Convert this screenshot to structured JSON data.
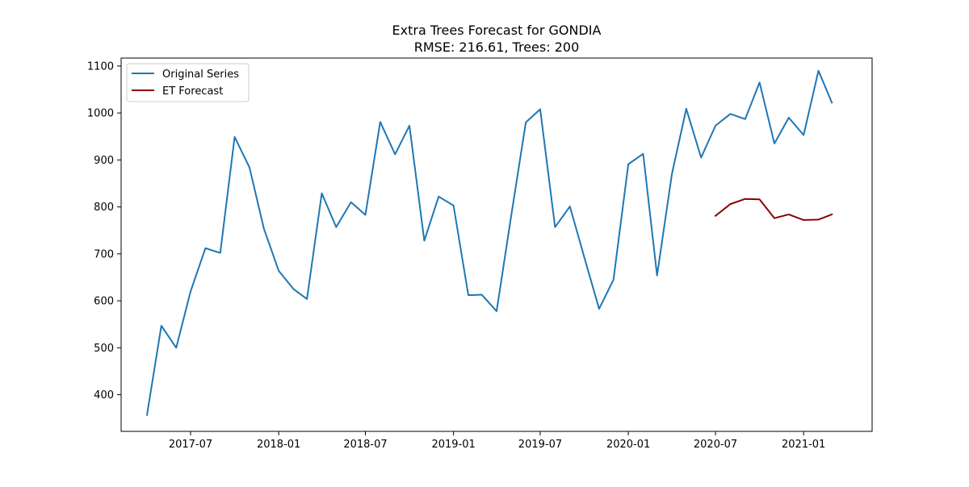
{
  "chart_data": {
    "type": "line",
    "title": "Extra Trees Forecast for GONDIA",
    "subtitle": "RMSE: 216.61, Trees: 200",
    "xlabel": "",
    "ylabel": "",
    "ylim": [
      322,
      1117
    ],
    "xlim": [
      "2017-02-06",
      "2021-05-24"
    ],
    "y_ticks": [
      400,
      500,
      600,
      700,
      800,
      900,
      1000,
      1100
    ],
    "x_ticks": [
      {
        "date": "2017-07-01",
        "label": "2017-07"
      },
      {
        "date": "2018-01-01",
        "label": "2018-01"
      },
      {
        "date": "2018-07-01",
        "label": "2018-07"
      },
      {
        "date": "2019-01-01",
        "label": "2019-01"
      },
      {
        "date": "2019-07-01",
        "label": "2019-07"
      },
      {
        "date": "2020-01-01",
        "label": "2020-01"
      },
      {
        "date": "2020-07-01",
        "label": "2020-07"
      },
      {
        "date": "2021-01-01",
        "label": "2021-01"
      }
    ],
    "grid": false,
    "legend_position": "top-left",
    "series": [
      {
        "name": "Original Series",
        "color": "#1f77b4",
        "x": [
          "2017-04-01",
          "2017-05-01",
          "2017-06-01",
          "2017-07-01",
          "2017-08-01",
          "2017-09-01",
          "2017-10-01",
          "2017-11-01",
          "2017-12-01",
          "2018-01-01",
          "2018-02-01",
          "2018-03-01",
          "2018-04-01",
          "2018-05-01",
          "2018-06-01",
          "2018-07-01",
          "2018-08-01",
          "2018-09-01",
          "2018-10-01",
          "2018-11-01",
          "2018-12-01",
          "2019-01-01",
          "2019-02-01",
          "2019-03-01",
          "2019-04-01",
          "2019-05-01",
          "2019-06-01",
          "2019-07-01",
          "2019-08-01",
          "2019-09-01",
          "2019-10-01",
          "2019-11-01",
          "2019-12-01",
          "2020-01-01",
          "2020-02-01",
          "2020-03-01",
          "2020-04-01",
          "2020-05-01",
          "2020-06-01",
          "2020-07-01",
          "2020-08-01",
          "2020-09-01",
          "2020-10-01",
          "2020-11-01",
          "2020-12-01",
          "2021-01-01",
          "2021-02-01",
          "2021-03-01"
        ],
        "values": [
          357,
          547,
          500,
          620,
          712,
          702,
          949,
          884,
          754,
          664,
          625,
          604,
          829,
          757,
          810,
          783,
          981,
          912,
          973,
          728,
          822,
          803,
          612,
          613,
          578,
          778,
          980,
          1008,
          757,
          801,
          693,
          583,
          645,
          891,
          913,
          654,
          870,
          1009,
          905,
          973,
          998,
          987,
          1065,
          935,
          990,
          953,
          1090,
          1022
        ]
      },
      {
        "name": "ET Forecast",
        "color": "#8b0000",
        "x": [
          "2020-07-01",
          "2020-08-01",
          "2020-09-01",
          "2020-10-01",
          "2020-11-01",
          "2020-12-01",
          "2021-01-01",
          "2021-02-01",
          "2021-03-01"
        ],
        "values": [
          781,
          806,
          817,
          816,
          776,
          784,
          772,
          773,
          784
        ]
      }
    ]
  }
}
